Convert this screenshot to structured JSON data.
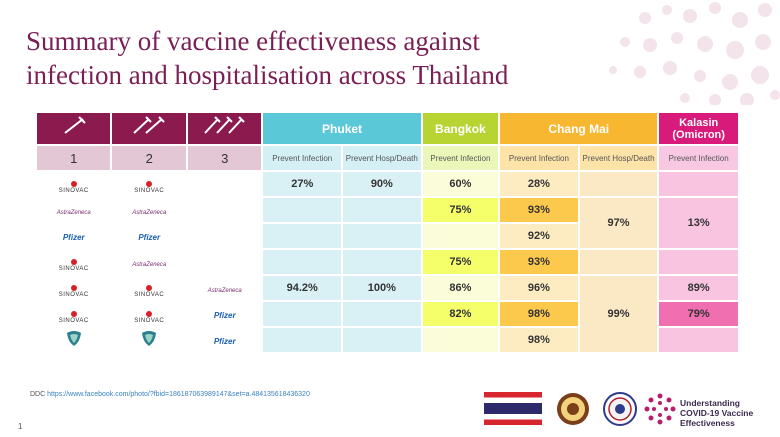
{
  "title_lines": [
    "Summary of vaccine effectiveness against",
    "infection and hospitalisation across Thailand"
  ],
  "dose_numbers": [
    "1",
    "2",
    "3"
  ],
  "regions": {
    "phuket": "Phuket",
    "bangkok": "Bangkok",
    "chiang_mai": "Chang Mai",
    "kalasin": "Kalasin (Omicron)"
  },
  "subheaders": {
    "prevent_infection": "Prevent Infection",
    "prevent_hosp_death": "Prevent Hosp/Death"
  },
  "vaccine_labels": {
    "sinovac": "SINOVAC",
    "astrazeneca": "AstraZeneca",
    "pfizer": "Pfizer"
  },
  "values": {
    "phuket_inf_r1": "27%",
    "phuket_hosp_r1": "90%",
    "phuket_inf_r5": "94.2%",
    "phuket_hosp_r5": "100%",
    "bkk_r1": "60%",
    "bkk_r2": "75%",
    "bkk_r4": "75%",
    "bkk_r5": "86%",
    "bkk_r6": "82%",
    "cm_r1": "28%",
    "cm_r2": "93%",
    "cm_r3": "92%",
    "cm_r4": "93%",
    "cm_r5": "96%",
    "cm_r6": "98%",
    "cm_r7": "98%",
    "cm_hosp_top": "97%",
    "cm_hosp_bottom": "99%",
    "kal_top": "13%",
    "kal_r5": "89%",
    "kal_r6": "79%"
  },
  "source": {
    "prefix": "DDC",
    "link": "https://www.facebook.com/photo/?fbid=186187063989147&set=a.484135618436320"
  },
  "page_number": "1",
  "logo_text": [
    "Understanding",
    "COVID-19 Vaccine",
    "Effectiveness"
  ],
  "colors": {
    "title": "#7a1f55",
    "header_plum": "#8b1a4f",
    "phuket": "#5bc8d8",
    "bangkok": "#b7d432",
    "chiang_mai": "#f7b731",
    "kalasin": "#d81b7a"
  }
}
